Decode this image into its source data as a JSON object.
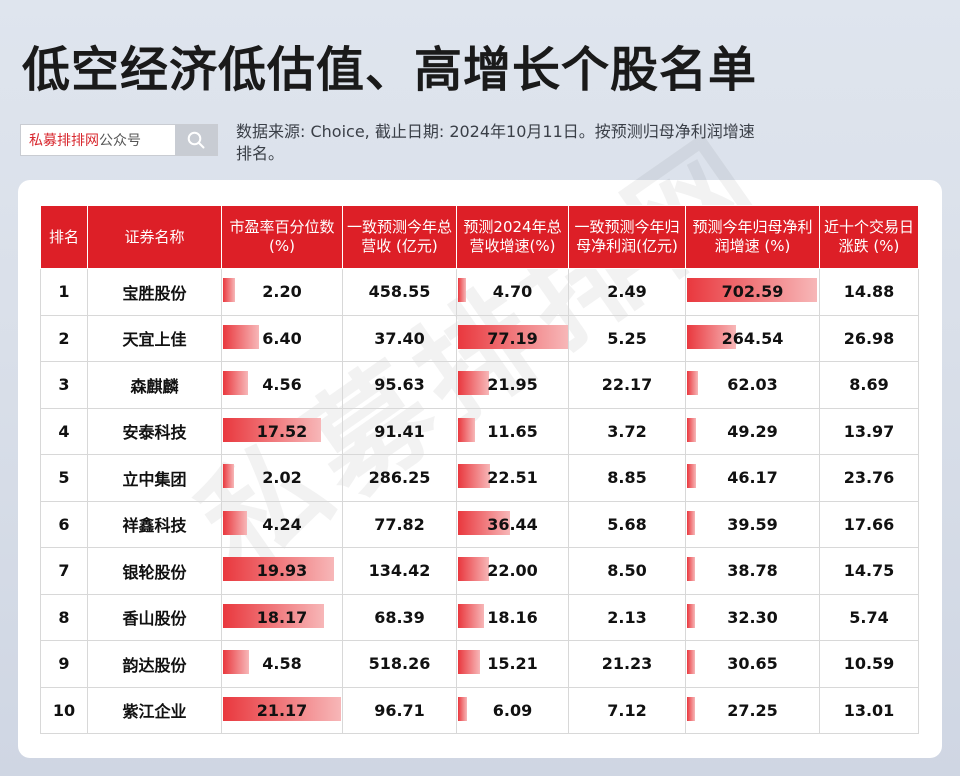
{
  "title": "低空经济低估值、高增长个股名单",
  "search": {
    "brand_red": "私募排排网",
    "brand_gray": "公众号"
  },
  "note": "数据来源: Choice, 截止日期: 2024年10月11日。按预测归母净利润增速排名。",
  "watermark": "私募排排网",
  "table": {
    "headers": [
      "排名",
      "证券名称",
      "市盈率百分位数(%)",
      "一致预测今年总营收 (亿元)",
      "预测2024年总营收增速(%)",
      "一致预测今年归母净利润(亿元)",
      "预测今年归母净利润增速 (%)",
      "近十个交易日涨跌 (%)"
    ],
    "rows": [
      {
        "rank": "1",
        "name": "宝胜股份",
        "pe_pct": "2.20",
        "revenue": "458.55",
        "rev_growth": "4.70",
        "profit": "2.49",
        "profit_growth": "702.59",
        "change10d": "14.88"
      },
      {
        "rank": "2",
        "name": "天宜上佳",
        "pe_pct": "6.40",
        "revenue": "37.40",
        "rev_growth": "77.19",
        "profit": "5.25",
        "profit_growth": "264.54",
        "change10d": "26.98"
      },
      {
        "rank": "3",
        "name": "森麒麟",
        "pe_pct": "4.56",
        "revenue": "95.63",
        "rev_growth": "21.95",
        "profit": "22.17",
        "profit_growth": "62.03",
        "change10d": "8.69"
      },
      {
        "rank": "4",
        "name": "安泰科技",
        "pe_pct": "17.52",
        "revenue": "91.41",
        "rev_growth": "11.65",
        "profit": "3.72",
        "profit_growth": "49.29",
        "change10d": "13.97"
      },
      {
        "rank": "5",
        "name": "立中集团",
        "pe_pct": "2.02",
        "revenue": "286.25",
        "rev_growth": "22.51",
        "profit": "8.85",
        "profit_growth": "46.17",
        "change10d": "23.76"
      },
      {
        "rank": "6",
        "name": "祥鑫科技",
        "pe_pct": "4.24",
        "revenue": "77.82",
        "rev_growth": "36.44",
        "profit": "5.68",
        "profit_growth": "39.59",
        "change10d": "17.66"
      },
      {
        "rank": "7",
        "name": "银轮股份",
        "pe_pct": "19.93",
        "revenue": "134.42",
        "rev_growth": "22.00",
        "profit": "8.50",
        "profit_growth": "38.78",
        "change10d": "14.75"
      },
      {
        "rank": "8",
        "name": "香山股份",
        "pe_pct": "18.17",
        "revenue": "68.39",
        "rev_growth": "18.16",
        "profit": "2.13",
        "profit_growth": "32.30",
        "change10d": "5.74"
      },
      {
        "rank": "9",
        "name": "韵达股份",
        "pe_pct": "4.58",
        "revenue": "518.26",
        "rev_growth": "15.21",
        "profit": "21.23",
        "profit_growth": "30.65",
        "change10d": "10.59"
      },
      {
        "rank": "10",
        "name": "紫江企业",
        "pe_pct": "21.17",
        "revenue": "96.71",
        "rev_growth": "6.09",
        "profit": "7.12",
        "profit_growth": "27.25",
        "change10d": "13.01"
      }
    ]
  },
  "colors": {
    "header_red": "#dd1f27",
    "bar_red": "#e9383e",
    "brand_red": "#d8282f"
  },
  "icons": {
    "search": "search-icon"
  }
}
